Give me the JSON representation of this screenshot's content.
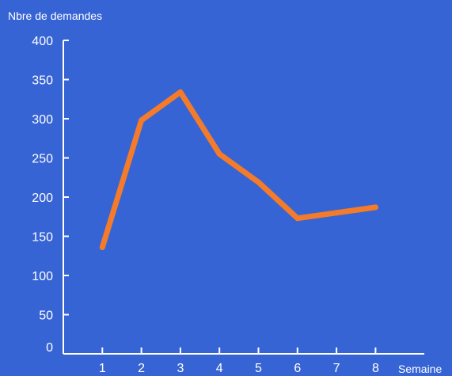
{
  "chart_data": {
    "type": "line",
    "x": [
      1,
      2,
      3,
      4,
      5,
      6,
      7,
      8
    ],
    "series": [
      {
        "values": [
          136,
          298,
          334,
          255,
          219,
          173,
          180,
          187
        ]
      }
    ],
    "ylabel": "Nbre de demandes",
    "xlabel": "Semaine",
    "ylim": [
      0,
      400
    ],
    "yticks": [
      0,
      50,
      100,
      150,
      200,
      250,
      300,
      350,
      400
    ],
    "xlim": [
      0,
      9
    ],
    "grid": false,
    "colors": {
      "background": "#3764d4",
      "line": "#f47b2a",
      "axis": "#ffffff",
      "text": "#ffffff"
    }
  }
}
